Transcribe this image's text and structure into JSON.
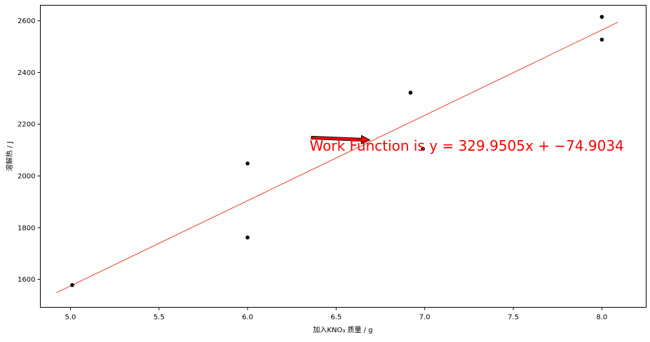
{
  "chart_data": {
    "type": "scatter",
    "xlabel": "加入KNO₃ 质量 / g",
    "ylabel": "溶解热 / J",
    "xlim": [
      4.83,
      8.25
    ],
    "ylim": [
      1492,
      2660
    ],
    "grid": false,
    "xticks": [
      5.0,
      5.5,
      6.0,
      6.5,
      7.0,
      7.5,
      8.0
    ],
    "xtick_labels": [
      "5.0",
      "5.5",
      "6.0",
      "6.5",
      "7.0",
      "7.5",
      "8.0"
    ],
    "yticks": [
      1600,
      1800,
      2000,
      2200,
      2400,
      2600
    ],
    "ytick_labels": [
      "1600",
      "1800",
      "2000",
      "2200",
      "2400",
      "2600"
    ],
    "points": [
      {
        "x": 5.01,
        "y": 1578
      },
      {
        "x": 6.0,
        "y": 2048
      },
      {
        "x": 6.0,
        "y": 1762
      },
      {
        "x": 6.92,
        "y": 2322
      },
      {
        "x": 6.99,
        "y": 2105
      },
      {
        "x": 8.0,
        "y": 2615
      },
      {
        "x": 8.0,
        "y": 2527
      }
    ],
    "point_color": "#000000",
    "fit_line": {
      "x": [
        4.92,
        8.09
      ],
      "y": [
        1548,
        2594
      ],
      "color": "#e83e2f"
    },
    "annotation": {
      "text": "Work Function is y = 329.9505x + −74.9034",
      "color": "#ff0000",
      "arrow_tail": {
        "x": 6.36,
        "y": 2148
      },
      "arrow_head": {
        "x": 6.69,
        "y": 2139
      },
      "text_at": {
        "x": 6.35,
        "y": 2098
      }
    }
  }
}
